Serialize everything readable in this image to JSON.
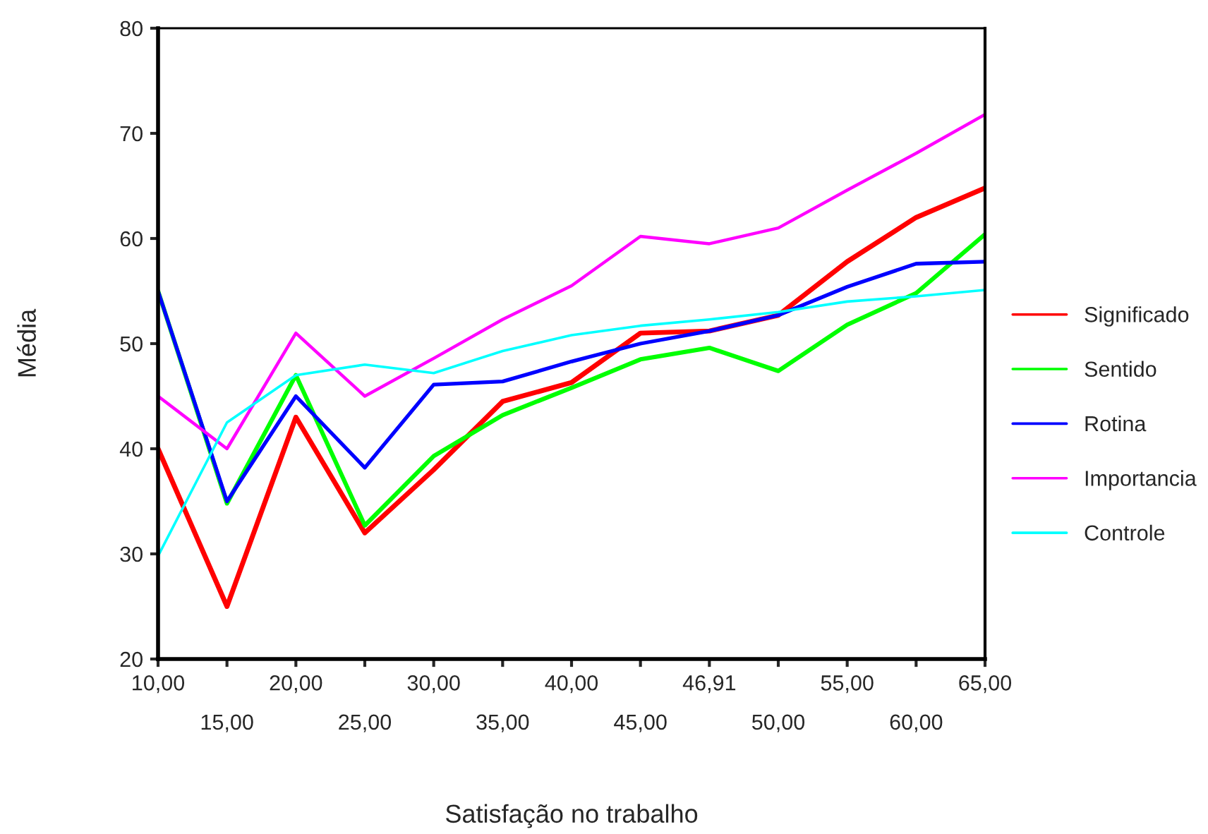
{
  "chart_data": {
    "type": "line",
    "xlabel": "Satisfação no trabalho",
    "ylabel": "Média",
    "categories": [
      "10,00",
      "15,00",
      "20,00",
      "25,00",
      "30,00",
      "35,00",
      "40,00",
      "45,00",
      "46,91",
      "50,00",
      "55,00",
      "60,00",
      "65,00"
    ],
    "series": [
      {
        "name": "Significado",
        "color": "#ff0000",
        "values": [
          40,
          25,
          43,
          32,
          38,
          44.5,
          46.3,
          51,
          51.2,
          52.7,
          57.8,
          62,
          64.8
        ]
      },
      {
        "name": "Sentido",
        "color": "#00ff00",
        "values": [
          55,
          34.8,
          47,
          32.7,
          39.3,
          43.2,
          45.8,
          48.5,
          49.6,
          47.4,
          51.8,
          54.8,
          60.4
        ]
      },
      {
        "name": "Rotina",
        "color": "#0000ff",
        "values": [
          55,
          35,
          45,
          38.2,
          46.1,
          46.4,
          48.3,
          50,
          51.2,
          52.7,
          55.4,
          57.6,
          57.8
        ]
      },
      {
        "name": "Importancia",
        "color": "#ff00ff",
        "values": [
          45,
          40,
          51,
          45,
          48.6,
          52.3,
          55.5,
          60.2,
          59.5,
          61,
          64.6,
          68.1,
          71.8
        ]
      },
      {
        "name": "Controle",
        "color": "#00ffff",
        "values": [
          29.8,
          42.5,
          47,
          48,
          47.2,
          49.3,
          50.8,
          51.7,
          52.3,
          53,
          54,
          54.5,
          55.1
        ]
      }
    ],
    "ylim": [
      20,
      80
    ],
    "yticks": [
      20,
      30,
      40,
      50,
      60,
      70,
      80
    ],
    "grid": false,
    "legend": "right",
    "marker": "none",
    "line_style": "solid"
  }
}
